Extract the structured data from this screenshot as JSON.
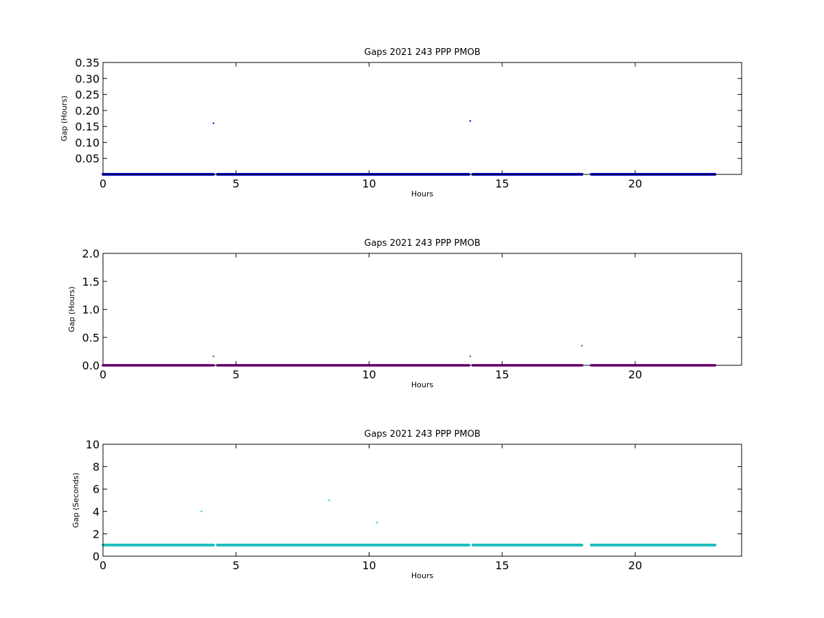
{
  "chart_data": [
    {
      "type": "scatter",
      "title": "Gaps 2021 243 PPP  PMOB",
      "xlabel": "Hours",
      "ylabel": "Gap (Hours)",
      "xlim": [
        0,
        24
      ],
      "ylim": [
        0,
        0.35
      ],
      "x_ticks": [
        0,
        5,
        10,
        15,
        20
      ],
      "y_ticks": [
        0.05,
        0.1,
        0.15,
        0.2,
        0.25,
        0.3,
        0.35
      ],
      "y_tick_labels": [
        "0.05",
        "0.10",
        "0.15",
        "0.20",
        "0.25",
        "0.30",
        "0.35"
      ],
      "grid": false,
      "color": "#0000cc",
      "baseline_y": 0.0003,
      "baseline_segments": [
        [
          0,
          4.15
        ],
        [
          4.3,
          13.75
        ],
        [
          13.9,
          18.0
        ],
        [
          18.35,
          23.0
        ]
      ],
      "outliers": [
        {
          "x": 4.15,
          "y": 0.16
        },
        {
          "x": 13.8,
          "y": 0.167
        }
      ]
    },
    {
      "type": "scatter",
      "title": "Gaps 2021 243 PPP  PMOB",
      "xlabel": "Hours",
      "ylabel": "Gap (Hours)",
      "xlim": [
        0,
        24
      ],
      "ylim": [
        0,
        2.0
      ],
      "x_ticks": [
        0,
        5,
        10,
        15,
        20
      ],
      "y_ticks": [
        0,
        0.5,
        1.0,
        1.5,
        2.0
      ],
      "y_tick_labels": [
        "0.0",
        "0.5",
        "1.0",
        "1.5",
        "2.0"
      ],
      "grid": false,
      "color": "#a020a0",
      "baseline_y": 0.0003,
      "baseline_segments": [
        [
          0,
          4.15
        ],
        [
          4.3,
          13.75
        ],
        [
          13.9,
          18.0
        ],
        [
          18.35,
          23.0
        ]
      ],
      "outliers": [
        {
          "x": 4.15,
          "y": 0.16
        },
        {
          "x": 13.8,
          "y": 0.16
        },
        {
          "x": 18.0,
          "y": 0.35
        }
      ]
    },
    {
      "type": "scatter",
      "title": "Gaps 2021 243 PPP  PMOB",
      "xlabel": "Hours",
      "ylabel": "Gap (Seconds)",
      "xlim": [
        0,
        24
      ],
      "ylim": [
        0,
        10
      ],
      "x_ticks": [
        0,
        5,
        10,
        15,
        20
      ],
      "y_ticks": [
        0,
        2,
        4,
        6,
        8,
        10
      ],
      "y_tick_labels": [
        "0",
        "2",
        "4",
        "6",
        "8",
        "10"
      ],
      "grid": false,
      "color": "#1abcbc",
      "baseline_y": 1.0,
      "baseline_segments": [
        [
          0,
          4.15
        ],
        [
          4.3,
          13.75
        ],
        [
          13.9,
          18.0
        ],
        [
          18.35,
          23.0
        ]
      ],
      "outliers": [
        {
          "x": 3.7,
          "y": 4.0
        },
        {
          "x": 8.5,
          "y": 5.0
        },
        {
          "x": 10.3,
          "y": 3.0
        }
      ]
    }
  ]
}
